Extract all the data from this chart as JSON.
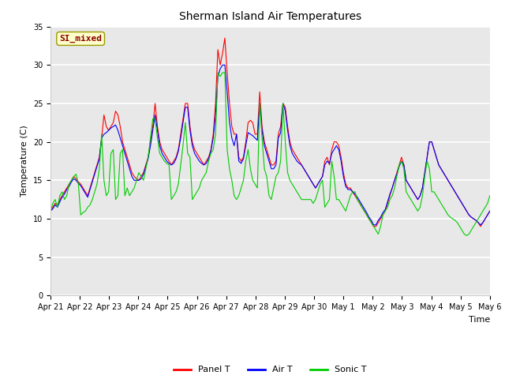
{
  "title": "Sherman Island Air Temperatures",
  "xlabel": "Time",
  "ylabel": "Temperature (C)",
  "ylim": [
    0,
    35
  ],
  "yticks": [
    0,
    5,
    10,
    15,
    20,
    25,
    30,
    35
  ],
  "annotation_text": "SI_mixed",
  "annotation_color": "#8b0000",
  "annotation_bg": "#ffffcc",
  "annotation_edge": "#999900",
  "x_labels": [
    "Apr 21",
    "Apr 22",
    "Apr 23",
    "Apr 24",
    "Apr 25",
    "Apr 26",
    "Apr 27",
    "Apr 28",
    "Apr 29",
    "Apr 30",
    "May 1",
    "May 2",
    "May 3",
    "May 4",
    "May 5",
    "May 6"
  ],
  "panel_t": [
    11.0,
    11.5,
    12.0,
    11.8,
    12.5,
    13.0,
    13.5,
    14.0,
    14.5,
    15.0,
    15.5,
    15.2,
    14.8,
    14.5,
    14.0,
    13.5,
    13.0,
    14.0,
    15.0,
    16.0,
    17.0,
    18.0,
    20.5,
    23.5,
    22.0,
    21.5,
    22.0,
    22.5,
    24.0,
    23.5,
    22.0,
    20.0,
    19.0,
    18.0,
    17.0,
    16.0,
    15.5,
    15.2,
    15.0,
    15.5,
    16.0,
    17.0,
    18.0,
    20.0,
    22.0,
    25.0,
    22.0,
    20.0,
    19.0,
    18.5,
    18.0,
    17.5,
    17.0,
    17.5,
    18.0,
    19.0,
    21.0,
    23.0,
    25.0,
    25.0,
    22.0,
    20.0,
    19.0,
    18.5,
    18.0,
    17.5,
    17.0,
    17.5,
    18.0,
    19.0,
    21.0,
    25.0,
    32.0,
    30.0,
    31.5,
    33.5,
    29.0,
    25.0,
    22.0,
    21.0,
    21.0,
    18.0,
    17.5,
    18.0,
    20.0,
    22.5,
    22.8,
    22.5,
    21.0,
    21.0,
    26.5,
    22.0,
    20.0,
    19.0,
    18.0,
    17.0,
    17.0,
    17.5,
    21.0,
    22.0,
    25.0,
    24.5,
    22.0,
    20.0,
    19.0,
    18.5,
    18.0,
    17.5,
    17.0,
    16.5,
    16.0,
    15.5,
    15.0,
    14.5,
    14.0,
    14.5,
    15.0,
    15.5,
    17.5,
    18.0,
    17.0,
    19.0,
    20.0,
    20.0,
    19.5,
    18.0,
    16.0,
    14.5,
    14.0,
    14.0,
    13.5,
    13.0,
    12.5,
    12.0,
    11.5,
    11.0,
    10.5,
    10.0,
    9.5,
    9.0,
    9.0,
    9.5,
    10.0,
    10.5,
    11.0,
    12.0,
    13.0,
    14.0,
    15.0,
    16.0,
    17.0,
    18.0,
    17.0,
    15.0,
    14.5,
    14.0,
    13.5,
    13.0,
    12.5,
    13.0,
    14.0,
    16.0,
    18.0,
    20.0,
    20.0,
    19.0,
    18.0,
    17.0,
    16.5,
    16.0,
    15.5,
    15.0,
    14.5,
    14.0,
    13.5,
    13.0,
    12.5,
    12.0,
    11.5,
    11.0,
    10.5,
    10.2,
    10.0,
    9.8,
    9.5,
    9.0,
    9.5,
    10.0,
    10.5,
    11.0
  ],
  "air_t": [
    11.0,
    11.3,
    11.8,
    11.5,
    12.2,
    12.8,
    13.2,
    13.8,
    14.2,
    14.8,
    15.2,
    15.0,
    14.6,
    14.3,
    13.8,
    13.3,
    12.8,
    13.8,
    14.8,
    15.8,
    16.8,
    17.8,
    20.5,
    21.0,
    21.2,
    21.5,
    21.8,
    22.0,
    22.2,
    21.5,
    20.5,
    19.5,
    18.5,
    17.5,
    16.5,
    15.5,
    15.0,
    15.0,
    15.0,
    15.2,
    15.8,
    16.8,
    17.8,
    19.5,
    21.5,
    23.5,
    21.5,
    19.5,
    18.5,
    18.0,
    17.5,
    17.2,
    17.0,
    17.2,
    17.8,
    18.8,
    20.5,
    22.5,
    24.5,
    24.5,
    21.5,
    19.5,
    18.5,
    18.0,
    17.5,
    17.2,
    17.0,
    17.2,
    17.8,
    18.8,
    20.5,
    23.5,
    28.5,
    29.5,
    30.0,
    30.0,
    26.5,
    22.5,
    20.5,
    19.5,
    21.0,
    17.5,
    17.2,
    17.8,
    19.5,
    21.2,
    21.0,
    20.8,
    20.5,
    20.2,
    25.0,
    21.5,
    19.5,
    18.5,
    17.5,
    16.5,
    16.5,
    17.0,
    20.5,
    21.2,
    25.0,
    24.0,
    21.5,
    19.5,
    18.5,
    18.0,
    17.5,
    17.2,
    17.0,
    16.5,
    16.0,
    15.5,
    15.0,
    14.5,
    14.0,
    14.5,
    15.0,
    15.5,
    17.0,
    17.5,
    17.2,
    18.5,
    19.0,
    19.5,
    19.0,
    17.5,
    15.5,
    14.2,
    13.8,
    13.8,
    13.5,
    13.2,
    12.8,
    12.3,
    11.8,
    11.3,
    10.8,
    10.2,
    9.8,
    9.2,
    9.2,
    9.8,
    10.2,
    10.8,
    11.2,
    12.2,
    13.2,
    14.0,
    15.0,
    15.8,
    16.8,
    17.5,
    17.0,
    15.0,
    14.5,
    14.0,
    13.5,
    13.0,
    12.5,
    13.0,
    14.0,
    16.0,
    18.0,
    20.0,
    20.0,
    19.0,
    18.0,
    17.0,
    16.5,
    16.0,
    15.5,
    15.0,
    14.5,
    14.0,
    13.5,
    13.0,
    12.5,
    12.0,
    11.5,
    11.0,
    10.5,
    10.2,
    10.0,
    9.8,
    9.5,
    9.2,
    9.5,
    10.0,
    10.5,
    11.0
  ],
  "sonic_t": [
    11.0,
    12.0,
    12.5,
    11.5,
    13.0,
    13.5,
    12.5,
    13.0,
    14.5,
    15.0,
    15.5,
    15.8,
    14.5,
    10.5,
    10.8,
    11.0,
    11.5,
    11.8,
    12.5,
    13.5,
    14.5,
    16.5,
    21.0,
    15.0,
    13.0,
    13.5,
    18.5,
    19.0,
    12.5,
    13.0,
    18.5,
    19.0,
    13.0,
    14.0,
    13.0,
    13.5,
    14.0,
    15.0,
    16.0,
    15.5,
    15.0,
    16.5,
    18.0,
    20.5,
    23.0,
    23.0,
    20.5,
    18.5,
    18.0,
    17.5,
    17.2,
    17.0,
    12.5,
    13.0,
    13.5,
    14.5,
    17.0,
    19.5,
    22.5,
    18.5,
    18.0,
    12.5,
    13.0,
    13.5,
    14.0,
    15.0,
    15.5,
    16.0,
    17.5,
    18.5,
    19.0,
    21.0,
    29.0,
    28.5,
    29.0,
    29.0,
    19.0,
    16.5,
    15.0,
    13.0,
    12.5,
    13.0,
    14.0,
    15.0,
    17.5,
    19.0,
    16.5,
    15.0,
    14.5,
    14.0,
    25.0,
    20.5,
    16.5,
    15.5,
    13.0,
    12.5,
    14.0,
    15.5,
    16.0,
    17.5,
    25.0,
    20.0,
    16.0,
    15.0,
    14.5,
    14.0,
    13.5,
    13.0,
    12.5,
    12.5,
    12.5,
    12.5,
    12.5,
    12.0,
    12.5,
    13.5,
    14.5,
    15.0,
    11.5,
    12.0,
    12.5,
    17.5,
    15.5,
    12.5,
    12.5,
    12.0,
    11.5,
    11.0,
    12.0,
    13.0,
    13.5,
    13.5,
    12.5,
    12.0,
    11.5,
    11.0,
    10.5,
    10.0,
    9.5,
    9.0,
    8.5,
    8.0,
    9.0,
    10.5,
    11.0,
    11.5,
    12.5,
    13.0,
    14.0,
    15.5,
    17.0,
    17.5,
    16.5,
    13.5,
    13.0,
    12.5,
    12.0,
    11.5,
    11.0,
    11.5,
    13.0,
    15.5,
    17.5,
    16.5,
    13.5,
    13.5,
    13.0,
    12.5,
    12.0,
    11.5,
    11.0,
    10.5,
    10.2,
    10.0,
    9.8,
    9.5,
    9.0,
    8.5,
    8.0,
    7.8,
    8.0,
    8.5,
    9.0,
    9.5,
    10.0,
    10.5,
    11.0,
    11.5,
    12.0,
    13.0
  ],
  "colors": {
    "panel_t": "#ff0000",
    "air_t": "#0000ff",
    "sonic_t": "#00cc00"
  },
  "legend_labels": [
    "Panel T",
    "Air T",
    "Sonic T"
  ],
  "fig_facecolor": "#ffffff",
  "ax_facecolor": "#e8e8e8",
  "grid_color": "#ffffff",
  "title_fontsize": 10,
  "axis_fontsize": 8,
  "tick_fontsize": 7
}
